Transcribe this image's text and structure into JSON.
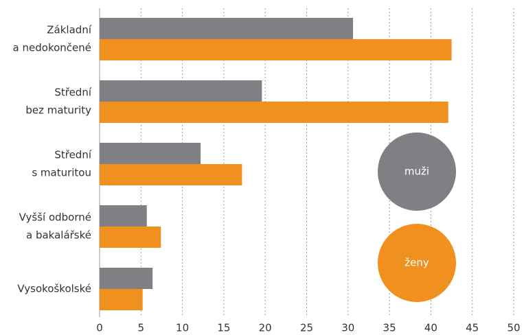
{
  "chart_data": {
    "type": "bar",
    "orientation": "horizontal",
    "categories": [
      [
        "Základní",
        "a nedokončené"
      ],
      [
        "Střední",
        "bez maturity"
      ],
      [
        "Střední",
        "s maturitou"
      ],
      [
        "Vyšší odborné",
        "a bakalářské"
      ],
      [
        "Vysokoškolské"
      ]
    ],
    "series": [
      {
        "name": "muži",
        "color": "#808084",
        "values": [
          30.6,
          19.6,
          12.2,
          5.7,
          6.4
        ]
      },
      {
        "name": "ženy",
        "color": "#f0911f",
        "values": [
          42.5,
          42.1,
          17.2,
          7.4,
          5.2
        ]
      }
    ],
    "xlim": [
      0,
      50
    ],
    "xticks": [
      0,
      5,
      10,
      15,
      20,
      25,
      30,
      35,
      40,
      45,
      50
    ],
    "grid": true
  }
}
